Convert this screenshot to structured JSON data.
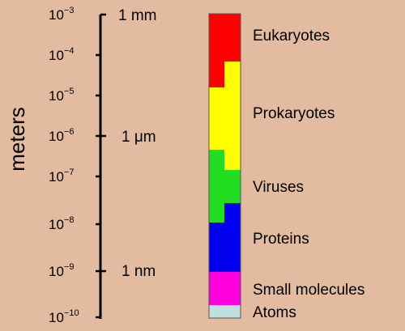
{
  "axis": {
    "title": "meters",
    "ticks": [
      {
        "base": "10",
        "exp": "−3",
        "unit": "1 mm"
      },
      {
        "base": "10",
        "exp": "−4",
        "unit": ""
      },
      {
        "base": "10",
        "exp": "−5",
        "unit": ""
      },
      {
        "base": "10",
        "exp": "−6",
        "unit": "1 μm"
      },
      {
        "base": "10",
        "exp": "−7",
        "unit": ""
      },
      {
        "base": "10",
        "exp": "−8",
        "unit": ""
      },
      {
        "base": "10",
        "exp": "−9",
        "unit": "1 nm"
      },
      {
        "base": "10",
        "exp": "−10",
        "unit": ""
      }
    ]
  },
  "categories": [
    {
      "label": "Eukaryotes",
      "color": "#ff0000"
    },
    {
      "label": "Prokaryotes",
      "color": "#ffff00"
    },
    {
      "label": "Viruses",
      "color": "#22dd22"
    },
    {
      "label": "Proteins",
      "color": "#0000ee"
    },
    {
      "label": "Small molecules",
      "color": "#ff00dd"
    },
    {
      "label": "Atoms",
      "color": "#c0e0e0"
    }
  ],
  "colors": {
    "background": "#e2bba1"
  }
}
